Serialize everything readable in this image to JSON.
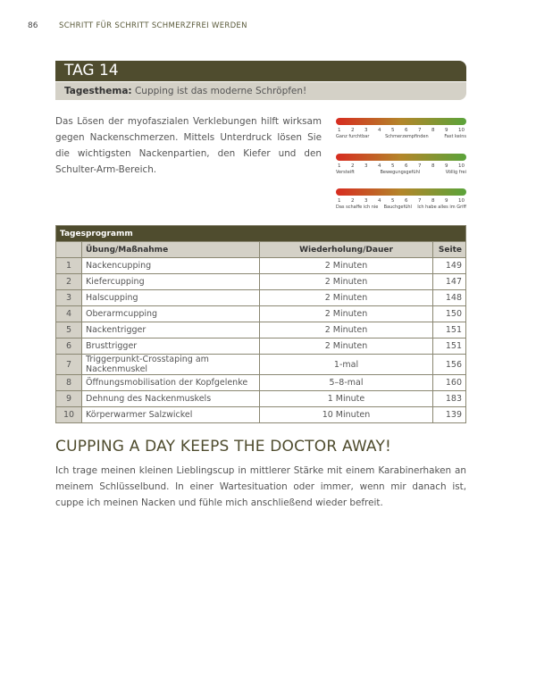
{
  "header": {
    "page_number": "86",
    "running_title": "SCHRITT FÜR SCHRITT SCHMERZFREI WERDEN"
  },
  "day": {
    "title": "TAG 14",
    "theme_label": "Tagesthema:",
    "theme_text": " Cupping ist das moderne Schröpfen!"
  },
  "intro": "Das Lösen der myofaszialen Verklebungen hilft wirksam gegen Nackenschmerzen. Mittels Unterdruck lösen Sie die wichtigsten Nackenpartien, den Kiefer und den Schulter-Arm-Bereich.",
  "scales": [
    {
      "left": "Ganz furchtbar",
      "mid": "Schmerzempfinden",
      "right": "Fast keins"
    },
    {
      "left": "Versteift",
      "mid": "Bewegungsgefühl",
      "right": "Völlig frei"
    },
    {
      "left": "Das schaffe ich nie",
      "mid": "Bauchgefühl",
      "right": "Ich habe alles im Griff"
    }
  ],
  "scale_ticks": [
    "1",
    "2",
    "3",
    "4",
    "5",
    "6",
    "7",
    "8",
    "9",
    "10"
  ],
  "gradient_colors": [
    "#d72c20",
    "#b3862a",
    "#5aa33a"
  ],
  "table": {
    "title": "Tagesprogramm",
    "headers": [
      "Übung/Maßnahme",
      "Wiederholung/Dauer",
      "Seite"
    ],
    "rows": [
      [
        "1",
        "Nackencupping",
        "2 Minuten",
        "149"
      ],
      [
        "2",
        "Kiefercupping",
        "2 Minuten",
        "147"
      ],
      [
        "3",
        "Halscupping",
        "2 Minuten",
        "148"
      ],
      [
        "4",
        "Oberarmcupping",
        "2 Minuten",
        "150"
      ],
      [
        "5",
        "Nackentrigger",
        "2 Minuten",
        "151"
      ],
      [
        "6",
        "Brusttrigger",
        "2 Minuten",
        "151"
      ],
      [
        "7",
        "Triggerpunkt-Crosstaping am Nackenmuskel",
        "1-mal",
        "156"
      ],
      [
        "8",
        "Öffnungsmobilisation der Kopfgelenke",
        "5–8-mal",
        "160"
      ],
      [
        "9",
        "Dehnung des Nackenmuskels",
        "1 Minute",
        "183"
      ],
      [
        "10",
        "Körperwarmer Salzwickel",
        "10 Minuten",
        "139"
      ]
    ]
  },
  "section": {
    "heading": "CUPPING A DAY KEEPS THE DOCTOR AWAY!",
    "body": "Ich trage meinen kleinen Lieblingscup in mittlerer Stärke mit einem Karabinerhaken an meinem Schlüsselbund. In einer Wartesituation oder immer, wenn mir danach ist, cuppe ich meinen Nacken und fühle mich anschließend wieder befreit."
  }
}
